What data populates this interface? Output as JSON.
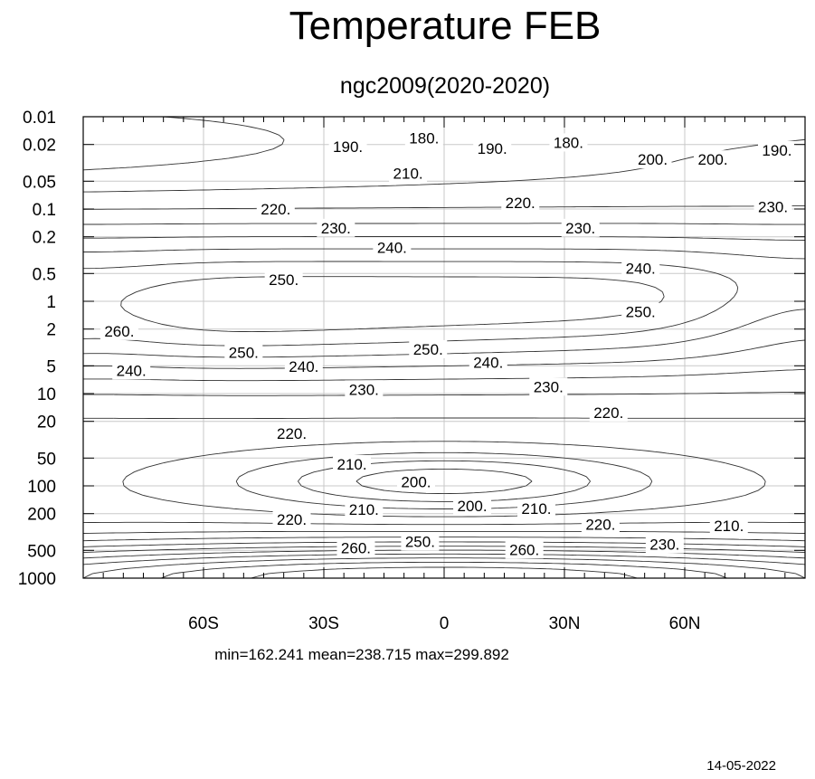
{
  "chart_data": {
    "type": "contour",
    "title": "Temperature FEB",
    "subtitle": "ngc2009(2020-2020)",
    "xlabel": "",
    "ylabel": "",
    "x_ticks": [
      {
        "value": -60,
        "label": "60S"
      },
      {
        "value": -30,
        "label": "30S"
      },
      {
        "value": 0,
        "label": "0"
      },
      {
        "value": 30,
        "label": "30N"
      },
      {
        "value": 60,
        "label": "60N"
      }
    ],
    "xlim": [
      -90,
      90
    ],
    "y_scale": "log",
    "y_inverted": true,
    "y_ticks": [
      "0.01",
      "0.02",
      "0.05",
      "0.1",
      "0.2",
      "0.5",
      "1",
      "2",
      "5",
      "10",
      "20",
      "50",
      "100",
      "200",
      "500",
      "1000"
    ],
    "ylim": [
      0.01,
      1000
    ],
    "grid": true,
    "contour_interval": 10,
    "contour_labels": [
      {
        "label": "180.",
        "lat": -5,
        "p": 0.017
      },
      {
        "label": "180.",
        "lat": 31,
        "p": 0.019
      },
      {
        "label": "190.",
        "lat": -24,
        "p": 0.021
      },
      {
        "label": "190.",
        "lat": 12,
        "p": 0.022
      },
      {
        "label": "190.",
        "lat": 83,
        "p": 0.023
      },
      {
        "label": "200.",
        "lat": 52,
        "p": 0.029
      },
      {
        "label": "200.",
        "lat": 67,
        "p": 0.029
      },
      {
        "label": "210.",
        "lat": -9,
        "p": 0.041
      },
      {
        "label": "220.",
        "lat": -42,
        "p": 0.1
      },
      {
        "label": "220.",
        "lat": 19,
        "p": 0.085
      },
      {
        "label": "230.",
        "lat": -27,
        "p": 0.16
      },
      {
        "label": "230.",
        "lat": 34,
        "p": 0.16
      },
      {
        "label": "230.",
        "lat": 82,
        "p": 0.095
      },
      {
        "label": "240.",
        "lat": -13,
        "p": 0.26
      },
      {
        "label": "240.",
        "lat": 49,
        "p": 0.44
      },
      {
        "label": "250.",
        "lat": -40,
        "p": 0.58
      },
      {
        "label": "250.",
        "lat": 49,
        "p": 1.3
      },
      {
        "label": "260.",
        "lat": -81,
        "p": 2.1
      },
      {
        "label": "250.",
        "lat": -50,
        "p": 3.6
      },
      {
        "label": "250.",
        "lat": -4,
        "p": 3.3
      },
      {
        "label": "240.",
        "lat": -78,
        "p": 5.6
      },
      {
        "label": "240.",
        "lat": -35,
        "p": 5.1
      },
      {
        "label": "240.",
        "lat": 11,
        "p": 4.6
      },
      {
        "label": "230.",
        "lat": -20,
        "p": 9.0
      },
      {
        "label": "230.",
        "lat": 26,
        "p": 8.4
      },
      {
        "label": "220.",
        "lat": -38,
        "p": 27
      },
      {
        "label": "220.",
        "lat": 41,
        "p": 16
      },
      {
        "label": "210.",
        "lat": -23,
        "p": 58
      },
      {
        "label": "210.",
        "lat": -20,
        "p": 180
      },
      {
        "label": "210.",
        "lat": 23,
        "p": 175
      },
      {
        "label": "210.",
        "lat": 71,
        "p": 270
      },
      {
        "label": "200.",
        "lat": -7,
        "p": 90
      },
      {
        "label": "200.",
        "lat": 7,
        "p": 165
      },
      {
        "label": "220.",
        "lat": -38,
        "p": 230
      },
      {
        "label": "220.",
        "lat": 39,
        "p": 260
      },
      {
        "label": "230.",
        "lat": 55,
        "p": 430
      },
      {
        "label": "250.",
        "lat": -6,
        "p": 400
      },
      {
        "label": "260.",
        "lat": -22,
        "p": 470
      },
      {
        "label": "260.",
        "lat": 20,
        "p": 490
      }
    ],
    "min": 162.241,
    "mean": 238.715,
    "max": 299.892
  },
  "stats_text": "min=162.241   mean=238.715   max=299.892",
  "date": "14-05-2022"
}
